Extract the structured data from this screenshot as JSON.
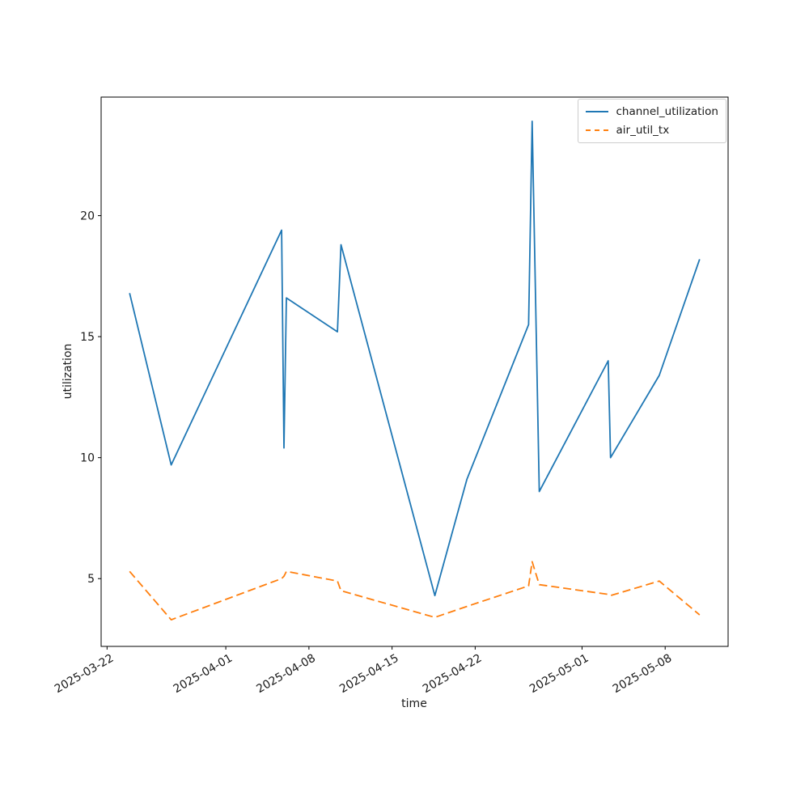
{
  "figure": {
    "background": "#ffffff"
  },
  "chart_data": {
    "type": "line",
    "title": "",
    "xlabel": "time",
    "ylabel": "utilization",
    "x_epoch_date": "2025-03-22",
    "x_axis": {
      "range_days": [
        -0.5,
        52.3
      ],
      "tick_rotation_deg": 30,
      "ticks": [
        {
          "day": 0,
          "label": "2025-03-22"
        },
        {
          "day": 10,
          "label": "2025-04-01"
        },
        {
          "day": 17,
          "label": "2025-04-08"
        },
        {
          "day": 24,
          "label": "2025-04-15"
        },
        {
          "day": 31,
          "label": "2025-04-22"
        },
        {
          "day": 40,
          "label": "2025-05-01"
        },
        {
          "day": 47,
          "label": "2025-05-08"
        }
      ]
    },
    "y_axis": {
      "range": [
        2.2,
        24.9
      ],
      "ticks": [
        5,
        10,
        15,
        20
      ]
    },
    "grid": false,
    "legend": {
      "position": "upper right",
      "entries": [
        "channel_utilization",
        "air_util_tx"
      ]
    },
    "series": [
      {
        "name": "channel_utilization",
        "color": "#1f77b4",
        "line_style": "solid",
        "points_format": "[days_since_2025-03-22, utilization]",
        "points": [
          [
            1.9,
            16.8
          ],
          [
            5.4,
            9.7
          ],
          [
            14.7,
            19.4
          ],
          [
            14.9,
            10.4
          ],
          [
            15.1,
            16.6
          ],
          [
            19.4,
            15.2
          ],
          [
            19.7,
            18.8
          ],
          [
            27.6,
            4.3
          ],
          [
            30.3,
            9.1
          ],
          [
            35.5,
            15.5
          ],
          [
            35.8,
            23.9
          ],
          [
            36.4,
            8.6
          ],
          [
            42.2,
            14.0
          ],
          [
            42.4,
            10.0
          ],
          [
            46.5,
            13.4
          ],
          [
            49.9,
            18.2
          ]
        ]
      },
      {
        "name": "air_util_tx",
        "color": "#ff7f0e",
        "line_style": "dashed",
        "points_format": "[days_since_2025-03-22, utilization]",
        "points": [
          [
            1.9,
            5.3
          ],
          [
            5.4,
            3.3
          ],
          [
            14.7,
            5.0
          ],
          [
            14.9,
            5.1
          ],
          [
            15.1,
            5.3
          ],
          [
            19.4,
            4.9
          ],
          [
            19.7,
            4.5
          ],
          [
            27.6,
            3.4
          ],
          [
            30.3,
            3.85
          ],
          [
            35.5,
            4.7
          ],
          [
            35.8,
            5.7
          ],
          [
            36.4,
            4.75
          ],
          [
            42.2,
            4.35
          ],
          [
            42.4,
            4.3
          ],
          [
            46.5,
            4.9
          ],
          [
            49.9,
            3.5
          ]
        ]
      }
    ]
  }
}
